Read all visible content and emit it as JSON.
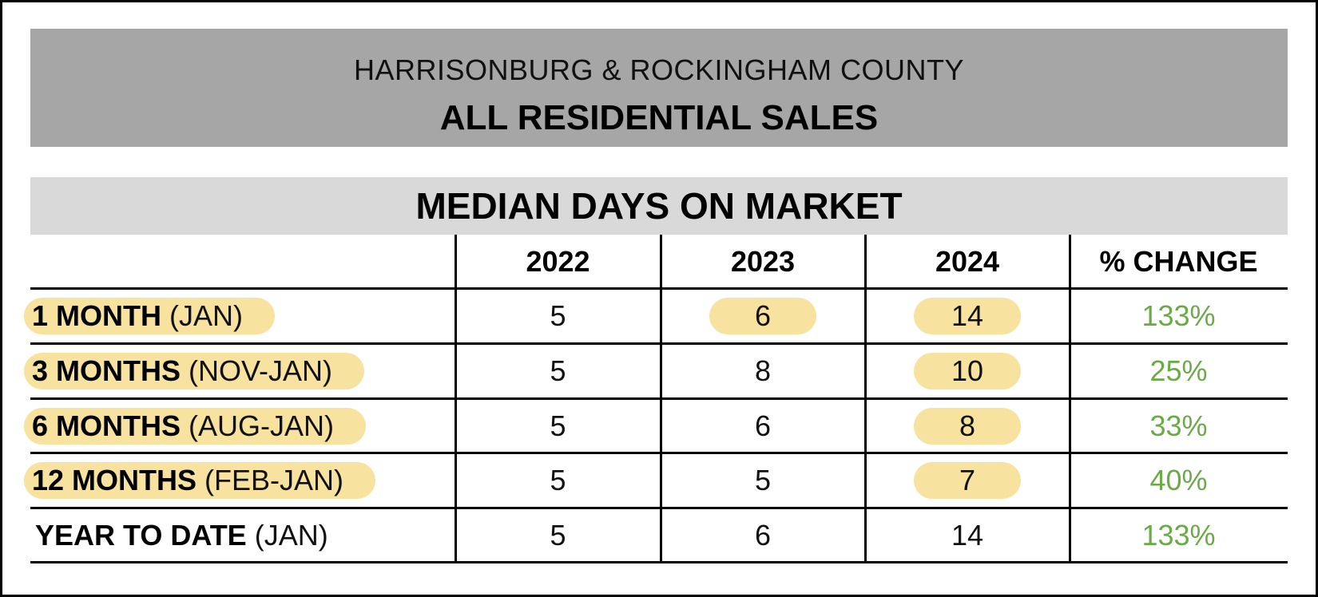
{
  "banner": {
    "subtitle": "HARRISONBURG & ROCKINGHAM COUNTY",
    "title": "ALL RESIDENTIAL SALES"
  },
  "chart_data": {
    "type": "table",
    "title": "MEDIAN DAYS ON MARKET",
    "columns": [
      "2022",
      "2023",
      "2024",
      "% CHANGE"
    ],
    "rows": [
      {
        "label_bold": "1 MONTH",
        "label_rest": " (JAN)",
        "highlight_label": true,
        "values": [
          "5",
          "6",
          "14",
          "133%"
        ],
        "highlight": [
          false,
          true,
          true,
          false
        ]
      },
      {
        "label_bold": "3 MONTHS",
        "label_rest": " (NOV-JAN)",
        "highlight_label": true,
        "values": [
          "5",
          "8",
          "10",
          "25%"
        ],
        "highlight": [
          false,
          false,
          true,
          false
        ]
      },
      {
        "label_bold": "6 MONTHS",
        "label_rest": " (AUG-JAN)",
        "highlight_label": true,
        "values": [
          "5",
          "6",
          "8",
          "33%"
        ],
        "highlight": [
          false,
          false,
          true,
          false
        ]
      },
      {
        "label_bold": "12 MONTHS",
        "label_rest": " (FEB-JAN)",
        "highlight_label": true,
        "values": [
          "5",
          "5",
          "7",
          "40%"
        ],
        "highlight": [
          false,
          false,
          true,
          false
        ]
      },
      {
        "label_bold": "YEAR TO DATE",
        "label_rest": " (JAN)",
        "highlight_label": false,
        "values": [
          "5",
          "6",
          "14",
          "133%"
        ],
        "highlight": [
          false,
          false,
          false,
          false
        ]
      }
    ]
  },
  "colors": {
    "banner_bg": "#a6a6a6",
    "section_bg": "#d9d9d9",
    "highlight": "#f7e2a0",
    "pct_change": "#6aab45"
  }
}
